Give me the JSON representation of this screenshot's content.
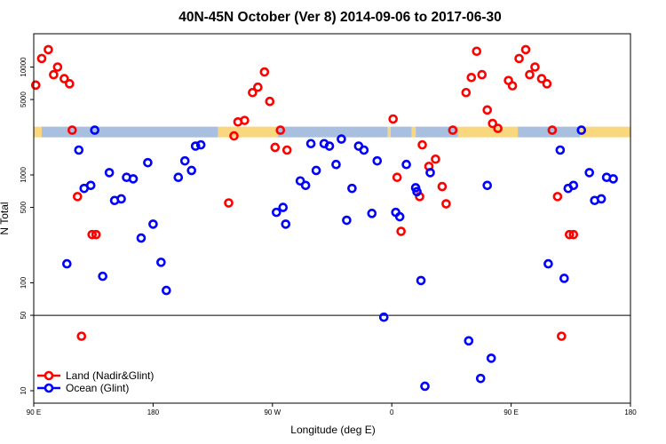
{
  "chart_data": {
    "type": "scatter",
    "title": "40N-45N October (Ver 8)   2014-09-06 to 2017-06-30",
    "xlabel": "Longitude (deg E)",
    "ylabel": "N Total",
    "x_axis": {
      "range_deg_east": [
        90,
        450
      ],
      "ticks": [
        {
          "value": 90,
          "label": "90 E"
        },
        {
          "value": 180,
          "label": "180"
        },
        {
          "value": 270,
          "label": "90 W"
        },
        {
          "value": 360,
          "label": "0"
        },
        {
          "value": 450,
          "label": "90 E"
        },
        {
          "value": 540,
          "label": "180"
        }
      ],
      "note": "values are degrees east, continuous from 90E through 180 and 0 to 180"
    },
    "y_axis": {
      "scale": "log",
      "ticks": [
        10,
        50,
        100,
        500,
        1000,
        5000,
        10000
      ]
    },
    "reference_line_y": 50,
    "land_band": {
      "n_value": 2500,
      "colors": {
        "land": "#f9d77e",
        "ocean": "#a8bfdf"
      },
      "land_segments_x": [
        [
          90,
          96
        ],
        [
          229,
          274
        ],
        [
          357,
          359
        ],
        [
          375,
          378
        ],
        [
          410,
          455
        ],
        [
          502,
          540
        ]
      ],
      "ocean_segments_x": [
        [
          96,
          229
        ],
        [
          274,
          357
        ],
        [
          359,
          375
        ],
        [
          378,
          410
        ],
        [
          455,
          502
        ]
      ]
    },
    "legend": {
      "position": "bottom-left"
    },
    "series": [
      {
        "name": "Land (Nadir&Glint)",
        "color": "#ff0000",
        "points": [
          [
            91.5,
            6800
          ],
          [
            96,
            12000
          ],
          [
            101,
            14500
          ],
          [
            105,
            8500
          ],
          [
            108,
            10000
          ],
          [
            113,
            7800
          ],
          [
            117,
            7000
          ],
          [
            119,
            2600
          ],
          [
            123,
            630
          ],
          [
            126,
            32
          ],
          [
            134,
            280
          ],
          [
            137,
            280
          ],
          [
            237,
            550
          ],
          [
            241,
            2300
          ],
          [
            244,
            3100
          ],
          [
            249,
            3200
          ],
          [
            255,
            5800
          ],
          [
            259,
            6500
          ],
          [
            264,
            9000
          ],
          [
            268,
            4800
          ],
          [
            272,
            1800
          ],
          [
            276,
            2600
          ],
          [
            281,
            1700
          ],
          [
            361,
            3300
          ],
          [
            364,
            950
          ],
          [
            367,
            300
          ],
          [
            381,
            630
          ],
          [
            383,
            1900
          ],
          [
            388,
            1200
          ],
          [
            393,
            1400
          ],
          [
            398,
            780
          ],
          [
            401,
            540
          ],
          [
            406,
            2600
          ],
          [
            416,
            5800
          ],
          [
            420,
            8000
          ],
          [
            424,
            14000
          ],
          [
            428,
            8500
          ],
          [
            432,
            4000
          ],
          [
            436,
            3000
          ],
          [
            440,
            2700
          ],
          [
            448,
            7500
          ],
          [
            451,
            6700
          ],
          [
            456,
            12000
          ],
          [
            461,
            14500
          ],
          [
            464,
            8500
          ],
          [
            468,
            10000
          ],
          [
            473,
            7800
          ],
          [
            477,
            7000
          ],
          [
            481,
            2600
          ],
          [
            485,
            630
          ],
          [
            488,
            32
          ],
          [
            494,
            280
          ],
          [
            497,
            280
          ]
        ]
      },
      {
        "name": "Ocean (Glint)",
        "color": "#0000ff",
        "points": [
          [
            115,
            150
          ],
          [
            124,
            1700
          ],
          [
            128,
            750
          ],
          [
            133,
            800
          ],
          [
            136,
            2600
          ],
          [
            142,
            115
          ],
          [
            147,
            1050
          ],
          [
            151,
            580
          ],
          [
            156,
            600
          ],
          [
            160,
            950
          ],
          [
            165,
            920
          ],
          [
            171,
            260
          ],
          [
            176,
            1300
          ],
          [
            180,
            350
          ],
          [
            186,
            155
          ],
          [
            190,
            85
          ],
          [
            199,
            950
          ],
          [
            204,
            1350
          ],
          [
            209,
            1100
          ],
          [
            212,
            1850
          ],
          [
            216,
            1900
          ],
          [
            273,
            450
          ],
          [
            278,
            500
          ],
          [
            280,
            350
          ],
          [
            291,
            880
          ],
          [
            295,
            800
          ],
          [
            299,
            1950
          ],
          [
            303,
            1100
          ],
          [
            309,
            1950
          ],
          [
            313,
            1850
          ],
          [
            318,
            1250
          ],
          [
            322,
            2150
          ],
          [
            326,
            380
          ],
          [
            330,
            750
          ],
          [
            335,
            1850
          ],
          [
            339,
            1700
          ],
          [
            345,
            440
          ],
          [
            349,
            1350
          ],
          [
            354,
            48
          ],
          [
            363,
            450
          ],
          [
            366,
            410
          ],
          [
            371,
            1250
          ],
          [
            378,
            760
          ],
          [
            379,
            700
          ],
          [
            382,
            105
          ],
          [
            385,
            11
          ],
          [
            389,
            1050
          ],
          [
            418,
            29
          ],
          [
            427,
            13
          ],
          [
            432,
            800
          ],
          [
            435,
            20
          ],
          [
            478,
            150
          ],
          [
            487,
            1700
          ],
          [
            490,
            110
          ],
          [
            493,
            750
          ],
          [
            497,
            800
          ],
          [
            503,
            2600
          ],
          [
            509,
            1050
          ],
          [
            513,
            580
          ],
          [
            518,
            600
          ],
          [
            522,
            950
          ],
          [
            527,
            920
          ]
        ]
      }
    ]
  }
}
